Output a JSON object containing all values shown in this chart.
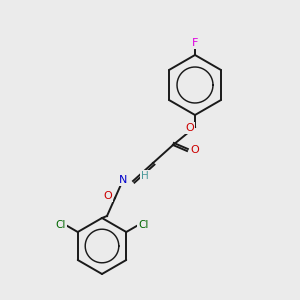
{
  "background_color": "#ebebeb",
  "bond_color": "#1a1a1a",
  "atom_colors": {
    "F": "#e000e0",
    "O": "#cc0000",
    "N": "#0000cc",
    "Cl": "#006600",
    "H": "#4a9a9a",
    "C": "#1a1a1a"
  },
  "font_size": 7.5,
  "line_width": 1.4
}
